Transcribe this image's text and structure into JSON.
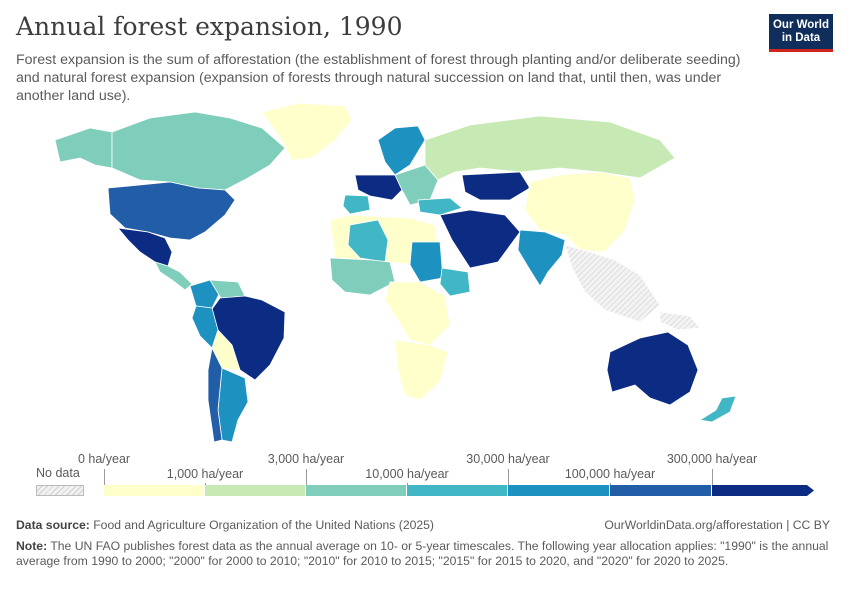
{
  "title": "Annual forest expansion, 1990",
  "subtitle": "Forest expansion is the sum of afforestation (the establishment of forest through planting and/or deliberate seeding) and natural forest expansion (expansion of forests through natural succession on land that, until then, was under another land use).",
  "logo": {
    "line1": "Our World",
    "line2": "in Data"
  },
  "legend": {
    "no_data": "No data",
    "upper_labels": [
      "0 ha/year",
      "3,000 ha/year",
      "30,000 ha/year",
      "300,000 ha/year"
    ],
    "lower_labels": [
      "1,000 ha/year",
      "10,000 ha/year",
      "100,000 ha/year"
    ],
    "colors": [
      "#ffffcc",
      "#c7e9b4",
      "#7fcdbb",
      "#41b6c4",
      "#1d91c0",
      "#225ea8",
      "#0c2c84"
    ]
  },
  "footer": {
    "source_label": "Data source:",
    "source_text": "Food and Agriculture Organization of the United Nations (2025)",
    "url_text": "OurWorldinData.org/afforestation | CC BY",
    "note_label": "Note:",
    "note_text": "The UN FAO publishes forest data as the annual average on 10- or 5-year timescales. The following year allocation applies: \"1990\" is the annual average from 1990 to 2000; \"2000\" for 2000 to 2010; \"2010\" for 2010 to 2015; \"2015\" for 2015 to 2020, and \"2020\" for 2020 to 2025."
  },
  "map_regions": [
    {
      "name": "Canada",
      "color": "#7fcdbb"
    },
    {
      "name": "Alaska",
      "color": "#7fcdbb"
    },
    {
      "name": "Greenland",
      "color": "#ffffcc"
    },
    {
      "name": "United States",
      "color": "#225ea8"
    },
    {
      "name": "Mexico",
      "color": "#0c2c84"
    },
    {
      "name": "Central America",
      "color": "#7fcdbb"
    },
    {
      "name": "Colombia",
      "color": "#1d91c0"
    },
    {
      "name": "Venezuela",
      "color": "#7fcdbb"
    },
    {
      "name": "Brazil",
      "color": "#0c2c84"
    },
    {
      "name": "Peru",
      "color": "#1d91c0"
    },
    {
      "name": "Bolivia",
      "color": "#ffffcc"
    },
    {
      "name": "Argentina",
      "color": "#1d91c0"
    },
    {
      "name": "Chile",
      "color": "#225ea8"
    },
    {
      "name": "Russia",
      "color": "#1d91c0"
    },
    {
      "name": "Scandinavia",
      "color": "#41b6c4"
    },
    {
      "name": "Spain",
      "color": "#0c2c84"
    },
    {
      "name": "Western Europe",
      "color": "#7fcdbb"
    },
    {
      "name": "Eastern Europe",
      "color": "#c7e9b4"
    },
    {
      "name": "Kazakhstan",
      "color": "#41b6c4"
    },
    {
      "name": "China",
      "color": "#0c2c84"
    },
    {
      "name": "India",
      "color": "#0c2c84"
    },
    {
      "name": "Middle East",
      "color": "#ffffcc"
    },
    {
      "name": "Turkey",
      "color": "#1d91c0"
    },
    {
      "name": "North Africa",
      "color": "#ffffcc"
    },
    {
      "name": "Algeria",
      "color": "#41b6c4"
    },
    {
      "name": "Sudan",
      "color": "#1d91c0"
    },
    {
      "name": "Ethiopia",
      "color": "#41b6c4"
    },
    {
      "name": "West Africa",
      "color": "#7fcdbb"
    },
    {
      "name": "Central Africa",
      "color": "#ffffcc"
    },
    {
      "name": "Southern Africa",
      "color": "#ffffcc"
    },
    {
      "name": "Australia",
      "color": "#0c2c84"
    },
    {
      "name": "New Zealand",
      "color": "#41b6c4"
    },
    {
      "name": "Southeast Asia",
      "color": "#ffffff"
    }
  ]
}
